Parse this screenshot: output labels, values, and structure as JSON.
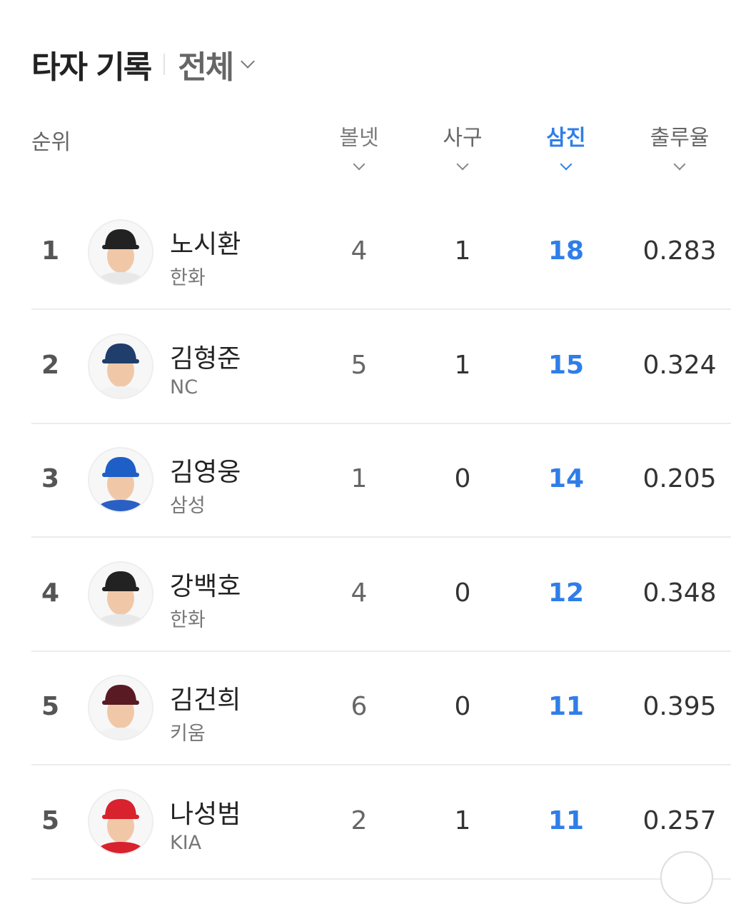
{
  "header": {
    "title": "타자 기록",
    "filter": "전체"
  },
  "columns": {
    "rank": "순위",
    "walks": "볼넷",
    "hbp": "사구",
    "strikeouts": "삼진",
    "obp": "출루율"
  },
  "accent": "#2f7ee8",
  "rows": [
    {
      "rank": "1",
      "name": "노시환",
      "team": "한화",
      "walks": "4",
      "hbp": "1",
      "so": "18",
      "obp": "0.283",
      "cap": "#222222",
      "jersey": "#e8e8e8"
    },
    {
      "rank": "2",
      "name": "김형준",
      "team": "NC",
      "walks": "5",
      "hbp": "1",
      "so": "15",
      "obp": "0.324",
      "cap": "#1f3e6b",
      "jersey": "#f2f2f2"
    },
    {
      "rank": "3",
      "name": "김영웅",
      "team": "삼성",
      "walks": "1",
      "hbp": "0",
      "so": "14",
      "obp": "0.205",
      "cap": "#1d5fc6",
      "jersey": "#2a60c4"
    },
    {
      "rank": "4",
      "name": "강백호",
      "team": "한화",
      "walks": "4",
      "hbp": "0",
      "so": "12",
      "obp": "0.348",
      "cap": "#222222",
      "jersey": "#e8e8e8"
    },
    {
      "rank": "5",
      "name": "김건희",
      "team": "키움",
      "walks": "6",
      "hbp": "0",
      "so": "11",
      "obp": "0.395",
      "cap": "#5a1a24",
      "jersey": "#f2f2f2"
    },
    {
      "rank": "5",
      "name": "나성범",
      "team": "KIA",
      "walks": "2",
      "hbp": "1",
      "so": "11",
      "obp": "0.257",
      "cap": "#d8222e",
      "jersey": "#d8222e"
    }
  ]
}
